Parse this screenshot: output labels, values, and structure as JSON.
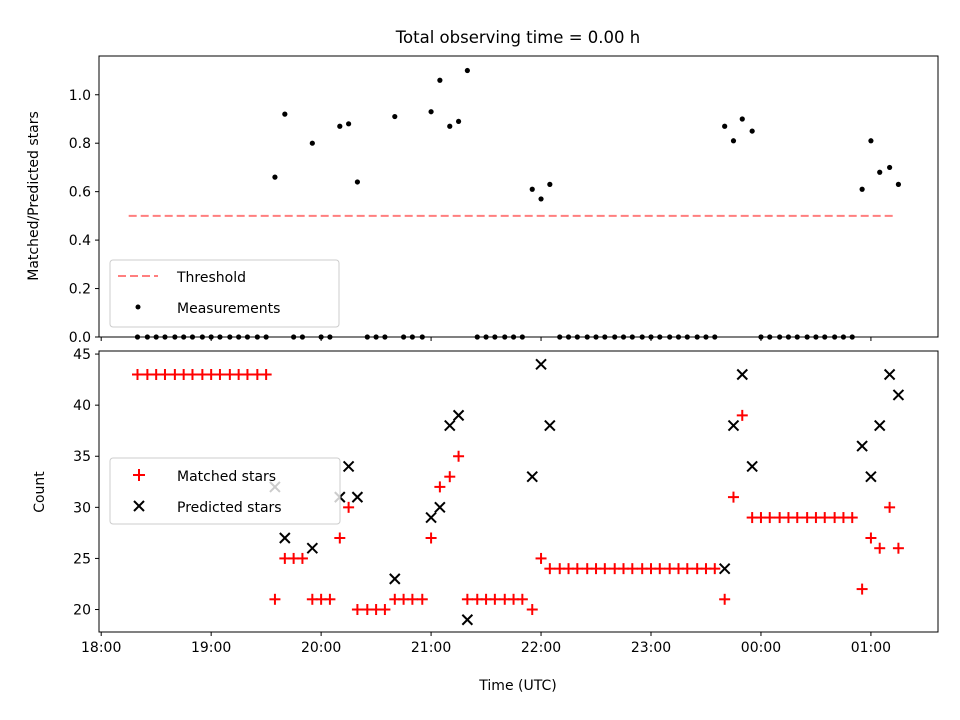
{
  "figure": {
    "title": "Total observing time = 0.00 h"
  },
  "colors": {
    "threshold": "#ff7f7f",
    "measurement": "#000000",
    "matched": "#ff0000",
    "predicted": "#000000",
    "axes": "#000000",
    "background": "#ffffff"
  },
  "chart_data": [
    {
      "type": "scatter",
      "panel": "top",
      "title": "Total observing time = 0.00 h",
      "xlabel": "",
      "ylabel": "Matched/Predicted stars",
      "x_unit": "hours (UTC, continuing past midnight)",
      "xlim": [
        17.98,
        25.61
      ],
      "ylim": [
        0.0,
        1.16
      ],
      "yticks": [
        0.0,
        0.2,
        0.4,
        0.6,
        0.8,
        1.0
      ],
      "ytick_labels": [
        "0.0",
        "0.2",
        "0.4",
        "0.6",
        "0.8",
        "1.0"
      ],
      "xticks": [
        18,
        19,
        20,
        21,
        22,
        23,
        24,
        25
      ],
      "grid": false,
      "legend": {
        "placement": "lower left",
        "entries": [
          "Threshold",
          "Measurements"
        ]
      },
      "series": [
        {
          "name": "Threshold",
          "style": "dashed-line",
          "color": "#ff7f7f",
          "x": [
            18.25,
            25.2
          ],
          "y": [
            0.5,
            0.5
          ]
        },
        {
          "name": "Measurements",
          "style": "dot",
          "color": "#000000",
          "x": [
            18.33,
            18.42,
            18.5,
            18.58,
            18.67,
            18.75,
            18.83,
            18.92,
            19.0,
            19.08,
            19.17,
            19.25,
            19.33,
            19.42,
            19.5,
            19.58,
            19.67,
            19.75,
            19.83,
            19.92,
            20.0,
            20.08,
            20.17,
            20.25,
            20.33,
            20.42,
            20.5,
            20.58,
            20.67,
            20.75,
            20.83,
            20.92,
            21.0,
            21.08,
            21.17,
            21.25,
            21.33,
            21.42,
            21.5,
            21.58,
            21.67,
            21.75,
            21.83,
            21.92,
            22.0,
            22.08,
            22.17,
            22.25,
            22.33,
            22.42,
            22.5,
            22.58,
            22.67,
            22.75,
            22.83,
            22.92,
            23.0,
            23.08,
            23.17,
            23.25,
            23.33,
            23.42,
            23.5,
            23.58,
            23.67,
            23.75,
            23.83,
            23.92,
            24.0,
            24.08,
            24.17,
            24.25,
            24.33,
            24.42,
            24.5,
            24.58,
            24.67,
            24.75,
            24.83,
            24.92,
            25.0,
            25.08,
            25.17,
            25.25
          ],
          "y": [
            0,
            0,
            0,
            0,
            0,
            0,
            0,
            0,
            0,
            0,
            0,
            0,
            0,
            0,
            0,
            0.66,
            0.92,
            0,
            0,
            0.8,
            0,
            0,
            0.87,
            0.88,
            0.64,
            0,
            0,
            0,
            0.91,
            0,
            0,
            0,
            0.93,
            1.06,
            0.87,
            0.89,
            1.1,
            0,
            0,
            0,
            0,
            0,
            0,
            0.61,
            0.57,
            0.63,
            0,
            0,
            0,
            0,
            0,
            0,
            0,
            0,
            0,
            0,
            0,
            0,
            0,
            0,
            0,
            0,
            0,
            0,
            0.87,
            0.81,
            0.9,
            0.85,
            0,
            0,
            0,
            0,
            0,
            0,
            0,
            0,
            0,
            0,
            0,
            0.61,
            0.81,
            0.68,
            0.7,
            0.63
          ]
        }
      ]
    },
    {
      "type": "scatter",
      "panel": "bottom",
      "title": "",
      "xlabel": "Time (UTC)",
      "ylabel": "Count",
      "x_unit": "hours (UTC, continuing past midnight)",
      "xlim": [
        17.98,
        25.61
      ],
      "ylim": [
        17.8,
        45.3
      ],
      "yticks": [
        20,
        25,
        30,
        35,
        40,
        45
      ],
      "ytick_labels": [
        "20",
        "25",
        "30",
        "35",
        "40",
        "45"
      ],
      "xticks": [
        18,
        19,
        20,
        21,
        22,
        23,
        24,
        25
      ],
      "xtick_labels": [
        "18:00",
        "19:00",
        "20:00",
        "21:00",
        "22:00",
        "23:00",
        "00:00",
        "01:00"
      ],
      "grid": false,
      "legend": {
        "placement": "center left",
        "entries": [
          "Matched stars",
          "Predicted stars"
        ]
      },
      "series": [
        {
          "name": "Matched stars",
          "marker": "plus",
          "color": "#ff0000",
          "x": [
            18.33,
            18.42,
            18.5,
            18.58,
            18.67,
            18.75,
            18.83,
            18.92,
            19.0,
            19.08,
            19.17,
            19.25,
            19.33,
            19.42,
            19.5,
            19.58,
            19.67,
            19.75,
            19.83,
            19.92,
            20.0,
            20.08,
            20.17,
            20.25,
            20.33,
            20.42,
            20.5,
            20.58,
            20.67,
            20.75,
            20.83,
            20.92,
            21.0,
            21.08,
            21.17,
            21.25,
            21.33,
            21.42,
            21.5,
            21.58,
            21.67,
            21.75,
            21.83,
            21.92,
            22.0,
            22.08,
            22.17,
            22.25,
            22.33,
            22.42,
            22.5,
            22.58,
            22.67,
            22.75,
            22.83,
            22.92,
            23.0,
            23.08,
            23.17,
            23.25,
            23.33,
            23.42,
            23.5,
            23.58,
            23.67,
            23.75,
            23.83,
            23.92,
            24.0,
            24.08,
            24.17,
            24.25,
            24.33,
            24.42,
            24.5,
            24.58,
            24.67,
            24.75,
            24.83,
            24.92,
            25.0,
            25.08,
            25.17,
            25.25
          ],
          "y": [
            43,
            43,
            43,
            43,
            43,
            43,
            43,
            43,
            43,
            43,
            43,
            43,
            43,
            43,
            43,
            21,
            25,
            25,
            25,
            21,
            21,
            21,
            27,
            30,
            20,
            20,
            20,
            20,
            21,
            21,
            21,
            21,
            27,
            32,
            33,
            35,
            21,
            21,
            21,
            21,
            21,
            21,
            21,
            20,
            25,
            24,
            24,
            24,
            24,
            24,
            24,
            24,
            24,
            24,
            24,
            24,
            24,
            24,
            24,
            24,
            24,
            24,
            24,
            24,
            21,
            31,
            39,
            29,
            29,
            29,
            29,
            29,
            29,
            29,
            29,
            29,
            29,
            29,
            29,
            22,
            27,
            26,
            30,
            26
          ]
        },
        {
          "name": "Predicted stars",
          "marker": "x",
          "color": "#000000",
          "x": [
            19.58,
            19.67,
            19.92,
            20.17,
            20.25,
            20.33,
            20.67,
            21.0,
            21.08,
            21.17,
            21.25,
            21.33,
            21.92,
            22.0,
            22.08,
            23.67,
            23.75,
            23.83,
            23.92,
            24.92,
            25.0,
            25.08,
            25.17,
            25.25
          ],
          "y": [
            32,
            27,
            26,
            31,
            34,
            31,
            23,
            29,
            30,
            38,
            39,
            19,
            33,
            44,
            38,
            24,
            38,
            43,
            34,
            36,
            33,
            38,
            43,
            41
          ]
        }
      ]
    }
  ]
}
